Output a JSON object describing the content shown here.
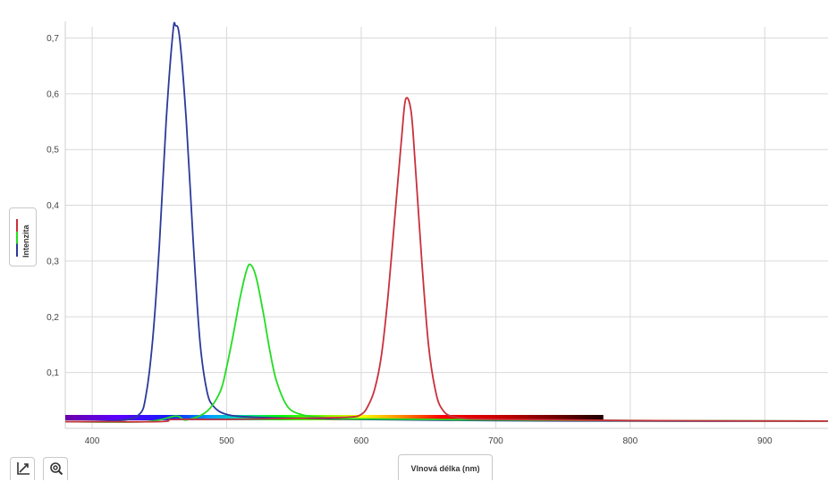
{
  "chart_data": {
    "type": "line",
    "title": "",
    "xlabel": "Vlnová délka (nm)",
    "ylabel": "Intenzita",
    "xlim": [
      380,
      947
    ],
    "ylim": [
      0,
      0.72
    ],
    "x_ticks": [
      400,
      500,
      600,
      700,
      800,
      900
    ],
    "x_tick_labels": [
      "400",
      "500",
      "600",
      "700",
      "800",
      "900"
    ],
    "y_ticks": [
      0.1,
      0.2,
      0.3,
      0.4,
      0.5,
      0.6,
      0.7
    ],
    "y_tick_labels": [
      "0,1",
      "0,2",
      "0,3",
      "0,4",
      "0,5",
      "0,6",
      "0,7"
    ],
    "grid": true,
    "spectrum_bar_range": [
      380,
      780
    ],
    "series": [
      {
        "color": "#2b3a9a",
        "x": [
          380,
          420,
          435,
          440,
          445,
          450,
          455,
          460,
          462,
          465,
          470,
          475,
          480,
          485,
          490,
          500,
          520,
          560,
          600,
          700,
          800,
          947
        ],
        "y": [
          0.012,
          0.014,
          0.025,
          0.06,
          0.16,
          0.33,
          0.55,
          0.71,
          0.722,
          0.7,
          0.55,
          0.34,
          0.16,
          0.07,
          0.04,
          0.025,
          0.02,
          0.018,
          0.016,
          0.014,
          0.013,
          0.013
        ]
      },
      {
        "color": "#22dd22",
        "x": [
          380,
          440,
          462,
          470,
          485,
          495,
          500,
          505,
          510,
          515,
          518,
          522,
          527,
          532,
          537,
          545,
          555,
          570,
          600,
          700,
          800,
          947
        ],
        "y": [
          0.012,
          0.012,
          0.022,
          0.015,
          0.03,
          0.065,
          0.11,
          0.17,
          0.235,
          0.285,
          0.293,
          0.27,
          0.21,
          0.14,
          0.085,
          0.04,
          0.025,
          0.02,
          0.017,
          0.015,
          0.014,
          0.013
        ]
      },
      {
        "color": "#c8303c",
        "x": [
          380,
          450,
          460,
          500,
          550,
          590,
          600,
          605,
          610,
          615,
          620,
          625,
          630,
          633,
          637,
          640,
          645,
          650,
          655,
          660,
          670,
          700,
          800,
          947
        ],
        "y": [
          0.012,
          0.012,
          0.016,
          0.016,
          0.018,
          0.02,
          0.025,
          0.04,
          0.07,
          0.13,
          0.24,
          0.38,
          0.52,
          0.59,
          0.57,
          0.48,
          0.3,
          0.15,
          0.07,
          0.035,
          0.02,
          0.016,
          0.014,
          0.013
        ]
      }
    ]
  }
}
